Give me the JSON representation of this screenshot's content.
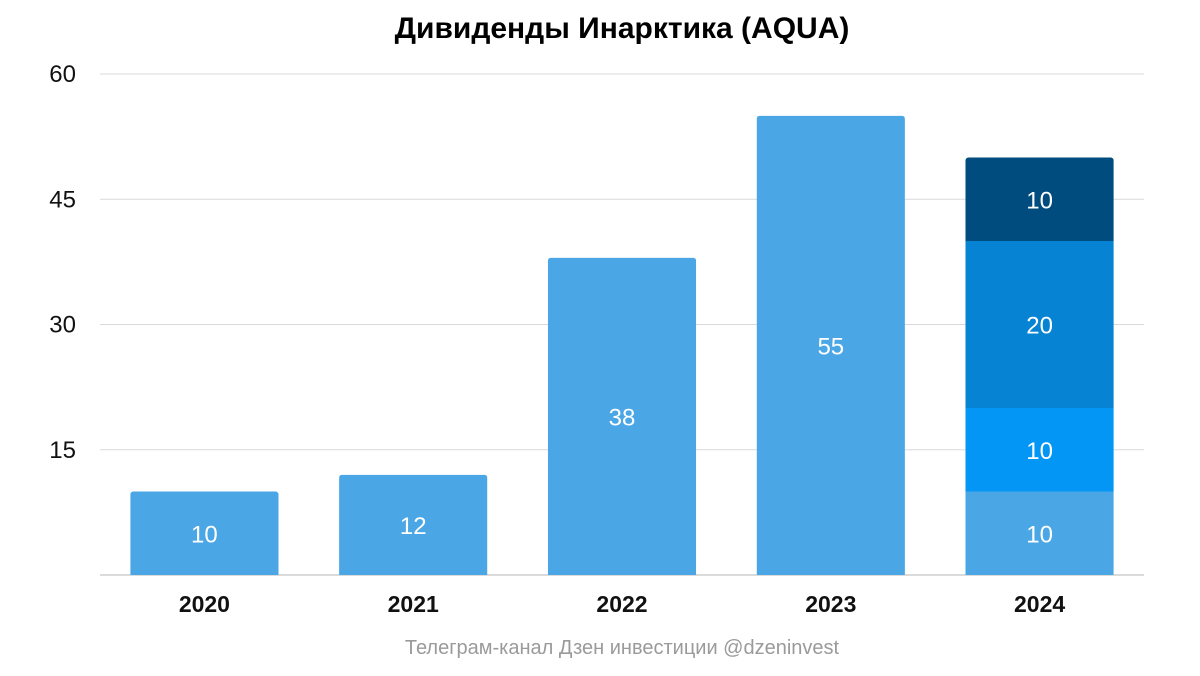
{
  "chart_data": {
    "type": "bar",
    "stacked": true,
    "title": "Дивиденды Инарктика (AQUA)",
    "xlabel": "",
    "ylabel": "",
    "categories": [
      "2020",
      "2021",
      "2022",
      "2023",
      "2024"
    ],
    "ylim": [
      0,
      60
    ],
    "yticks": [
      "15",
      "30",
      "45",
      "60"
    ],
    "grid": true,
    "legend": "none",
    "series": [
      {
        "values": [
          10,
          12,
          38,
          55,
          10
        ],
        "labels": [
          "10",
          "12",
          "38",
          "55",
          "10"
        ],
        "color": "#4BA6E6"
      },
      {
        "values": [
          0,
          0,
          0,
          0,
          10
        ],
        "labels": [
          "",
          "",
          "",
          "",
          "10"
        ],
        "color": "#0396F4"
      },
      {
        "values": [
          0,
          0,
          0,
          0,
          20
        ],
        "labels": [
          "",
          "",
          "",
          "",
          "20"
        ],
        "color": "#0683D3"
      },
      {
        "values": [
          0,
          0,
          0,
          0,
          10
        ],
        "labels": [
          "",
          "",
          "",
          "",
          "10"
        ],
        "color": "#004C7E"
      }
    ],
    "caption": "Телеграм-канал Дзен инвестиции @dzeninvest"
  }
}
